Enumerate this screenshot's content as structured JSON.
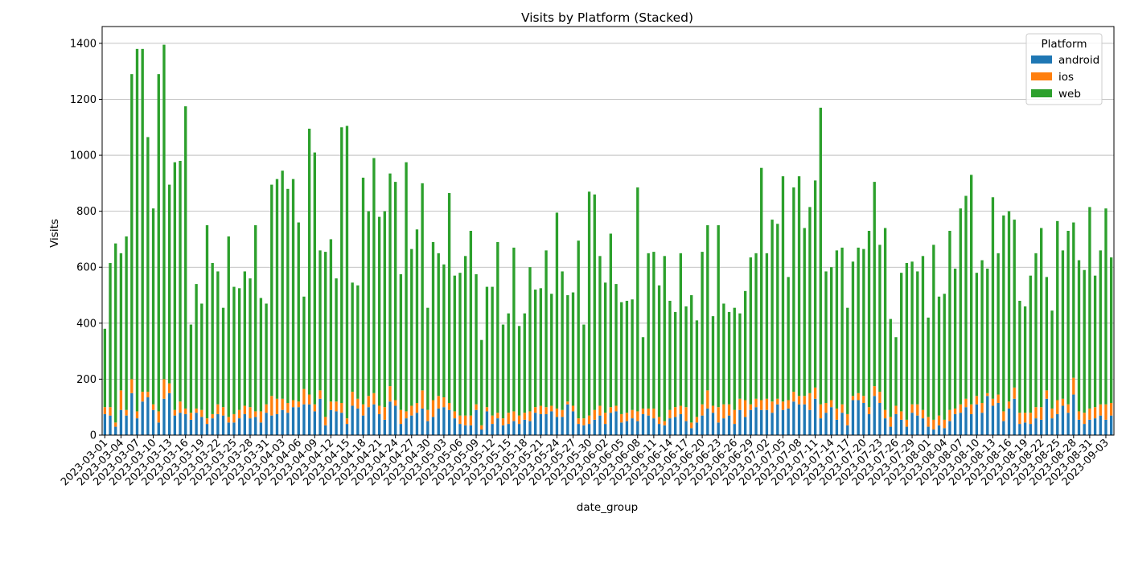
{
  "chart_data": {
    "type": "bar",
    "stacked": true,
    "title": "Visits by Platform (Stacked)",
    "xlabel": "date_group",
    "ylabel": "Visits",
    "ylim": [
      0,
      1460
    ],
    "yticks": [
      0,
      200,
      400,
      600,
      800,
      1000,
      1200,
      1400
    ],
    "grid": "y",
    "legend": {
      "title": "Platform",
      "placement": "top-right"
    },
    "start_date": "2023-03-01",
    "end_date": "2023-08-31",
    "tick_every_days": 3,
    "series": [
      {
        "name": "android",
        "color": "#1f77b4",
        "values": [
          75,
          70,
          30,
          90,
          70,
          150,
          60,
          120,
          135,
          90,
          45,
          130,
          150,
          70,
          80,
          75,
          55,
          80,
          65,
          40,
          60,
          75,
          70,
          45,
          45,
          60,
          75,
          60,
          65,
          45,
          80,
          70,
          75,
          90,
          80,
          100,
          100,
          110,
          110,
          85,
          130,
          35,
          90,
          85,
          80,
          40,
          105,
          95,
          70,
          100,
          110,
          75,
          55,
          120,
          105,
          40,
          60,
          70,
          80,
          95,
          50,
          65,
          95,
          100,
          90,
          60,
          40,
          35,
          35,
          90,
          20,
          85,
          40,
          60,
          35,
          40,
          50,
          40,
          55,
          50,
          80,
          75,
          75,
          85,
          65,
          65,
          110,
          85,
          40,
          35,
          40,
          55,
          70,
          40,
          80,
          85,
          45,
          50,
          60,
          50,
          75,
          70,
          60,
          40,
          35,
          60,
          65,
          75,
          50,
          25,
          45,
          70,
          95,
          80,
          45,
          60,
          70,
          40,
          90,
          65,
          90,
          100,
          90,
          90,
          80,
          110,
          90,
          95,
          120,
          110,
          110,
          90,
          130,
          60,
          80,
          100,
          55,
          80,
          35,
          125,
          125,
          115,
          75,
          140,
          115,
          60,
          30,
          75,
          55,
          30,
          80,
          70,
          60,
          30,
          20,
          35,
          25,
          50,
          75,
          80,
          100,
          75,
          110,
          80,
          140,
          105,
          115,
          50,
          95,
          130,
          40,
          45,
          40,
          60,
          55,
          130,
          60,
          75,
          105,
          80,
          145,
          55,
          40,
          55,
          60,
          70,
          55,
          70
        ]
      },
      {
        "name": "ios",
        "color": "#ff7f0e",
        "values": [
          25,
          30,
          15,
          70,
          20,
          50,
          25,
          35,
          20,
          20,
          40,
          70,
          35,
          20,
          40,
          20,
          25,
          15,
          25,
          20,
          15,
          35,
          30,
          20,
          30,
          30,
          30,
          40,
          20,
          40,
          30,
          70,
          55,
          40,
          35,
          25,
          20,
          55,
          35,
          25,
          30,
          30,
          30,
          35,
          35,
          20,
          50,
          35,
          40,
          40,
          40,
          30,
          45,
          55,
          20,
          50,
          25,
          35,
          35,
          65,
          40,
          60,
          45,
          35,
          25,
          25,
          30,
          35,
          35,
          20,
          15,
          15,
          30,
          20,
          25,
          40,
          35,
          30,
          25,
          35,
          20,
          30,
          25,
          20,
          30,
          25,
          10,
          20,
          20,
          25,
          30,
          35,
          35,
          40,
          20,
          20,
          30,
          30,
          30,
          35,
          20,
          25,
          35,
          25,
          15,
          30,
          35,
          30,
          50,
          20,
          20,
          40,
          65,
          25,
          55,
          50,
          40,
          50,
          40,
          60,
          20,
          30,
          35,
          40,
          40,
          20,
          30,
          30,
          35,
          30,
          30,
          60,
          40,
          50,
          35,
          25,
          40,
          30,
          40,
          15,
          25,
          25,
          25,
          35,
          40,
          30,
          35,
          30,
          30,
          25,
          30,
          40,
          30,
          35,
          35,
          35,
          30,
          40,
          20,
          30,
          30,
          35,
          30,
          35,
          10,
          25,
          30,
          35,
          25,
          40,
          40,
          35,
          40,
          40,
          45,
          30,
          35,
          50,
          25,
          30,
          60,
          30,
          40,
          40,
          40,
          40,
          55,
          45
        ]
      },
      {
        "name": "web",
        "color": "#2ca02c",
        "values": [
          280,
          515,
          640,
          490,
          620,
          1090,
          1295,
          1225,
          910,
          700,
          1205,
          1195,
          710,
          885,
          860,
          1080,
          315,
          445,
          380,
          690,
          540,
          475,
          355,
          645,
          455,
          435,
          480,
          460,
          665,
          405,
          360,
          755,
          785,
          815,
          765,
          790,
          640,
          330,
          950,
          900,
          500,
          590,
          580,
          440,
          985,
          1045,
          390,
          405,
          810,
          660,
          840,
          675,
          700,
          760,
          780,
          485,
          890,
          560,
          620,
          740,
          365,
          565,
          510,
          475,
          750,
          485,
          510,
          570,
          660,
          465,
          305,
          430,
          460,
          610,
          335,
          355,
          585,
          320,
          355,
          515,
          420,
          420,
          560,
          400,
          700,
          495,
          380,
          405,
          635,
          335,
          800,
          770,
          535,
          465,
          620,
          435,
          400,
          400,
          395,
          800,
          255,
          555,
          560,
          470,
          590,
          390,
          340,
          545,
          360,
          455,
          345,
          545,
          590,
          320,
          650,
          360,
          330,
          365,
          305,
          390,
          525,
          520,
          830,
          520,
          650,
          625,
          805,
          440,
          730,
          785,
          600,
          665,
          740,
          1060,
          470,
          475,
          565,
          560,
          380,
          480,
          520,
          525,
          630,
          730,
          525,
          650,
          350,
          245,
          495,
          560,
          510,
          475,
          550,
          355,
          625,
          425,
          450,
          640,
          500,
          700,
          725,
          820,
          440,
          510,
          445,
          720,
          505,
          700,
          680,
          600,
          400,
          380,
          490,
          550,
          640,
          405,
          350,
          640,
          530,
          620,
          555,
          540,
          510,
          720,
          470,
          550,
          700,
          520
        ]
      }
    ]
  }
}
